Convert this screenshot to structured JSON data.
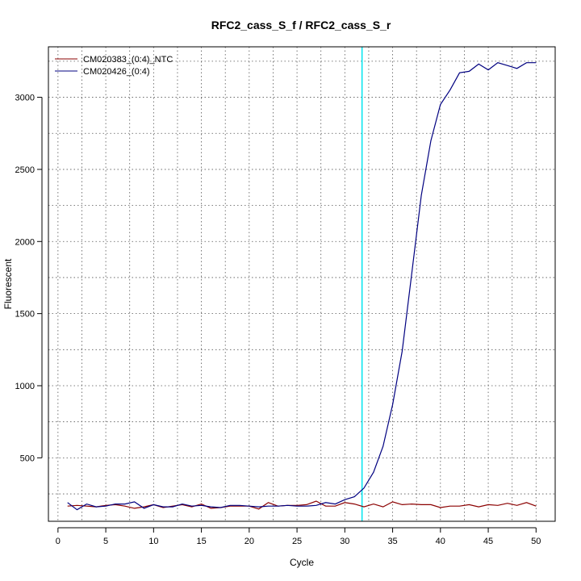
{
  "chart_data": {
    "type": "line",
    "title": "RFC2_cass_S_f / RFC2_cass_S_r",
    "xlabel": "Cycle",
    "ylabel": "Fluorescent",
    "xlim": [
      -1,
      52
    ],
    "ylim": [
      60,
      3350
    ],
    "xticks": [
      0,
      5,
      10,
      15,
      20,
      25,
      30,
      35,
      40,
      45,
      50
    ],
    "yticks": [
      500,
      1000,
      1500,
      2000,
      2500,
      3000
    ],
    "grid_dotted": true,
    "threshold_cycle": 31.8,
    "threshold_color": "#00e5ee",
    "legend_position": "top-left",
    "x": [
      1,
      2,
      3,
      4,
      5,
      6,
      7,
      8,
      9,
      10,
      11,
      12,
      13,
      14,
      15,
      16,
      17,
      18,
      19,
      20,
      21,
      22,
      23,
      24,
      25,
      26,
      27,
      28,
      29,
      30,
      31,
      32,
      33,
      34,
      35,
      36,
      37,
      38,
      39,
      40,
      41,
      42,
      43,
      44,
      45,
      46,
      47,
      48,
      49,
      50
    ],
    "series": [
      {
        "name": "CM020383_(0:4)_NTC",
        "color": "#8b0000",
        "values": [
          165,
          170,
          165,
          160,
          170,
          175,
          165,
          150,
          160,
          175,
          155,
          165,
          175,
          160,
          180,
          150,
          155,
          165,
          165,
          165,
          145,
          190,
          165,
          170,
          170,
          175,
          200,
          165,
          165,
          190,
          180,
          160,
          180,
          160,
          195,
          175,
          180,
          175,
          175,
          155,
          165,
          165,
          175,
          160,
          175,
          170,
          185,
          170,
          190,
          165
        ]
      },
      {
        "name": "CM020426_(0:4)",
        "color": "#000080",
        "values": [
          190,
          140,
          180,
          160,
          165,
          180,
          180,
          195,
          150,
          175,
          160,
          160,
          180,
          165,
          170,
          160,
          155,
          170,
          170,
          165,
          160,
          165,
          165,
          170,
          165,
          165,
          170,
          190,
          180,
          210,
          230,
          290,
          400,
          580,
          870,
          1240,
          1780,
          2320,
          2700,
          2950,
          3050,
          3170,
          3180,
          3230,
          3190,
          3240,
          3220,
          3200,
          3240,
          3240
        ]
      }
    ]
  }
}
